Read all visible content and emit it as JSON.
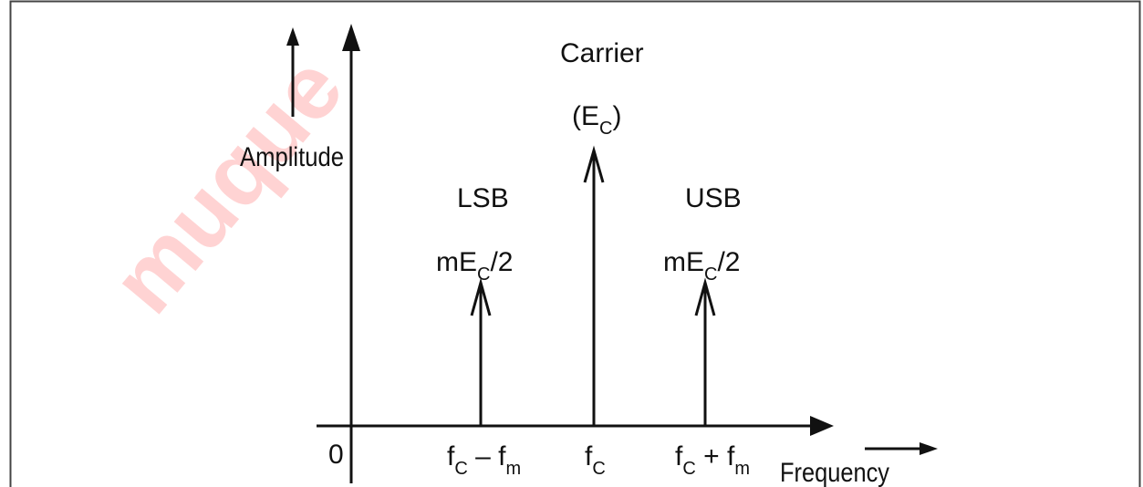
{
  "watermark": "muque",
  "axes": {
    "amplitude_label": "Amplitude",
    "frequency_label": "Frequency",
    "origin_label": "0"
  },
  "components": {
    "carrier": {
      "name": "Carrier",
      "amp_open": "(E",
      "amp_sub": "C",
      "amp_close": ")",
      "freq_main": "f",
      "freq_sub": "C"
    },
    "lsb": {
      "name": "LSB",
      "amp_main": "mE",
      "amp_sub": "C",
      "amp_tail": "/2",
      "freq_f1": "f",
      "freq_s1": "C",
      "freq_op": " – f",
      "freq_s2": "m"
    },
    "usb": {
      "name": "USB",
      "amp_main": "mE",
      "amp_sub": "C",
      "amp_tail": "/2",
      "freq_f1": "f",
      "freq_s1": "C",
      "freq_op": " + f",
      "freq_s2": "m"
    }
  },
  "colors": {
    "ink": "#111111",
    "frame": "#444444",
    "watermark": "#ff2a2a"
  }
}
